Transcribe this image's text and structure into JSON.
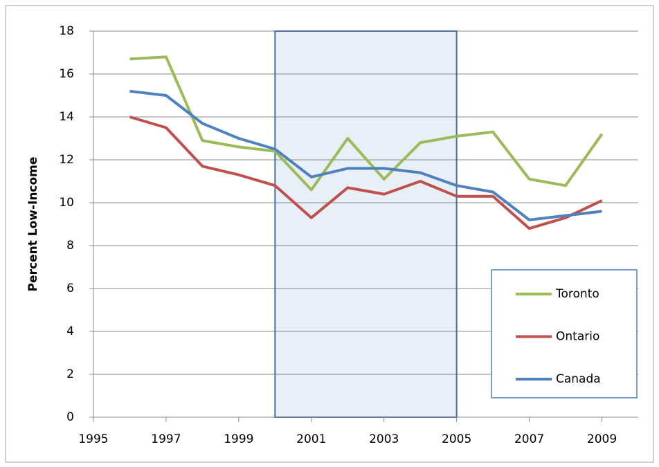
{
  "chart_data": {
    "type": "line",
    "y_label": "Percent Low-Income",
    "x": [
      1996,
      1997,
      1998,
      1999,
      2000,
      2001,
      2002,
      2003,
      2004,
      2005,
      2006,
      2007,
      2008,
      2009
    ],
    "series": [
      {
        "name": "Toronto",
        "color": "#9bbb59",
        "values": [
          16.7,
          16.8,
          12.9,
          12.6,
          12.4,
          10.6,
          13.0,
          11.1,
          12.8,
          13.1,
          13.3,
          11.1,
          10.8,
          13.2
        ]
      },
      {
        "name": "Ontario",
        "color": "#c0504d",
        "values": [
          14.0,
          13.5,
          11.7,
          11.3,
          10.8,
          9.3,
          10.7,
          10.4,
          11.0,
          10.3,
          10.3,
          8.8,
          9.3,
          10.1
        ]
      },
      {
        "name": "Canada",
        "color": "#4f81bd",
        "values": [
          15.2,
          15.0,
          13.7,
          13.0,
          12.5,
          11.2,
          11.6,
          11.6,
          11.4,
          10.8,
          10.5,
          9.2,
          9.4,
          9.6
        ]
      }
    ],
    "highlight_x": [
      2000,
      2005
    ],
    "xlim": [
      1995,
      2010
    ],
    "xticks": [
      1995,
      1997,
      1999,
      2001,
      2003,
      2005,
      2007,
      2009
    ],
    "ylim": [
      0,
      18
    ],
    "yticks": [
      0,
      2,
      4,
      6,
      8,
      10,
      12,
      14,
      16,
      18
    ],
    "grid": true,
    "legend": "bottom-right"
  }
}
